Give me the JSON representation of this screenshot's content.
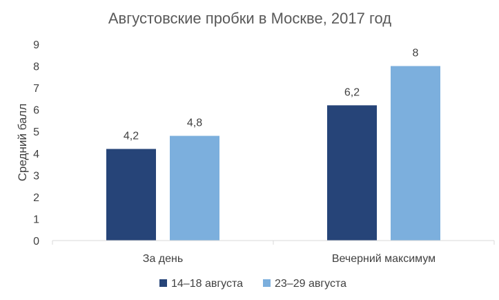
{
  "chart_data": {
    "type": "bar",
    "title": "Августовские пробки в Москве, 2017 год",
    "ylabel": "Средний балл",
    "xlabel": "",
    "categories": [
      "За день",
      "Вечерний максимум"
    ],
    "series": [
      {
        "name": "14–18 августа",
        "values": [
          4.2,
          6.2
        ],
        "labels": [
          "4,2",
          "6,2"
        ],
        "color": "#264478"
      },
      {
        "name": "23–29 августа",
        "values": [
          4.8,
          8
        ],
        "labels": [
          "4,8",
          "8"
        ],
        "color": "#7cafdd"
      }
    ],
    "ylim": [
      0,
      9
    ],
    "yticks": [
      "0",
      "1",
      "2",
      "3",
      "4",
      "5",
      "6",
      "7",
      "8",
      "9"
    ],
    "grid": false,
    "legend": "bottom"
  }
}
